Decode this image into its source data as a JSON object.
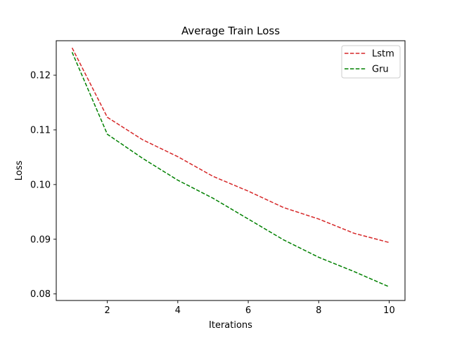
{
  "chart_data": {
    "type": "line",
    "title": "Average Train Loss",
    "xlabel": "Iterations",
    "ylabel": "Loss",
    "x": [
      1,
      2,
      3,
      4,
      5,
      6,
      7,
      8,
      9,
      10
    ],
    "xlim": [
      0.55,
      10.45
    ],
    "ylim": [
      0.0788,
      0.1263
    ],
    "xticks": [
      2,
      4,
      6,
      8,
      10
    ],
    "xtick_labels": [
      "2",
      "4",
      "6",
      "8",
      "10"
    ],
    "yticks": [
      0.08,
      0.09,
      0.1,
      0.11,
      0.12
    ],
    "ytick_labels": [
      "0.08",
      "0.09",
      "0.10",
      "0.11",
      "0.12"
    ],
    "grid": false,
    "legend_position": "top-right",
    "series": [
      {
        "name": "Lstm",
        "color": "#d62728",
        "line_style": "dashed",
        "values": [
          0.125,
          0.1123,
          0.1082,
          0.1051,
          0.1015,
          0.0988,
          0.0958,
          0.0937,
          0.0911,
          0.0894
        ]
      },
      {
        "name": "Gru",
        "color": "#008000",
        "line_style": "dashed",
        "values": [
          0.1242,
          0.1092,
          0.1048,
          0.1008,
          0.0975,
          0.0937,
          0.0899,
          0.0867,
          0.0841,
          0.0813
        ]
      }
    ]
  }
}
